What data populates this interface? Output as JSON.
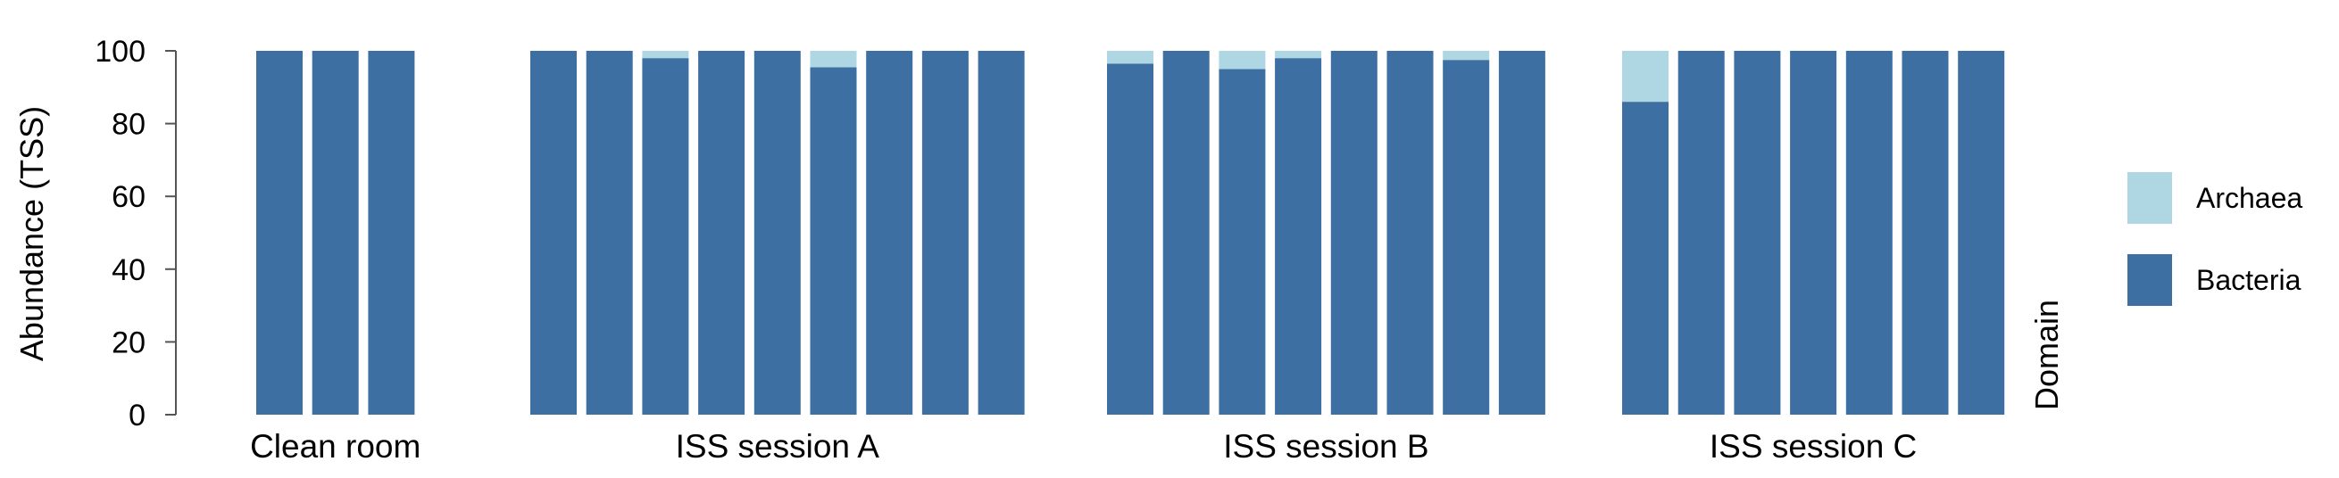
{
  "chart_data": {
    "type": "bar",
    "stacked": true,
    "ylabel": "Abundance (TSS)",
    "ylim": [
      0,
      100
    ],
    "yticks": [
      "0",
      "20",
      "40",
      "60",
      "80",
      "100"
    ],
    "legend_title": "Domain",
    "legend_position": "right",
    "series": [
      {
        "name": "Bacteria",
        "color": "#3d6fa3"
      },
      {
        "name": "Archaea",
        "color": "#aed6e3"
      }
    ],
    "groups": [
      {
        "label": "Clean room",
        "bacteria": [
          100,
          100,
          100
        ]
      },
      {
        "label": "ISS session A",
        "bacteria": [
          100,
          100,
          98,
          100,
          100,
          95.5,
          100,
          100,
          100
        ]
      },
      {
        "label": "ISS session B",
        "bacteria": [
          96.5,
          100,
          95,
          98,
          100,
          100,
          97.5,
          100
        ]
      },
      {
        "label": "ISS session C",
        "bacteria": [
          86,
          100,
          100,
          100,
          100,
          100,
          100
        ]
      }
    ]
  }
}
